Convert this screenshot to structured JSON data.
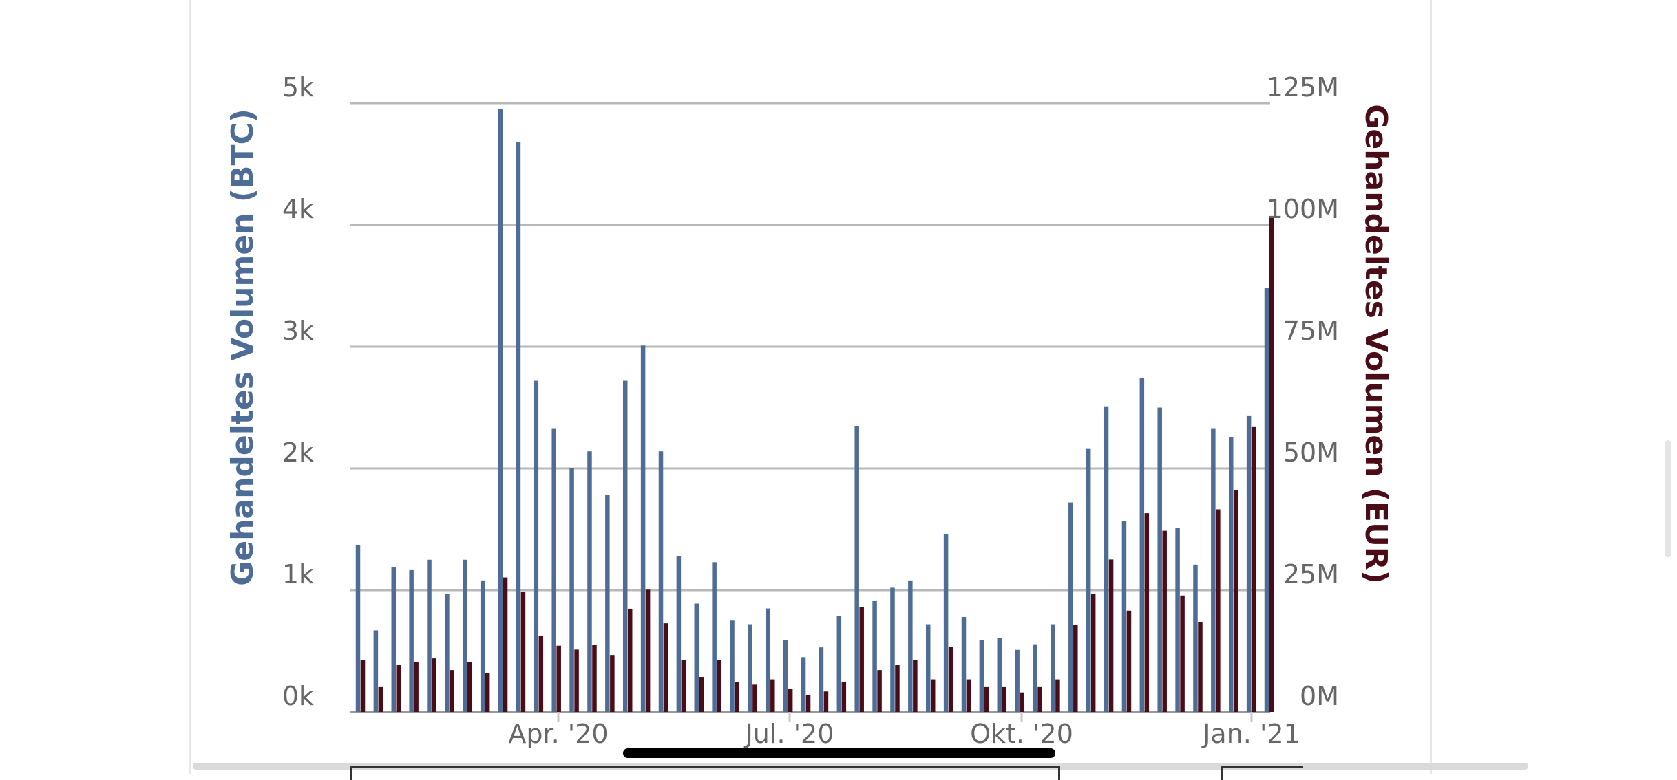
{
  "chart_data": {
    "type": "bar",
    "x_ticks": [
      "Apr. '20",
      "Jul. '20",
      "Okt. '20",
      "Jan. '21"
    ],
    "y_left": {
      "label": "Gehandeltes Volumen (BTC)",
      "ticks": [
        "0k",
        "1k",
        "2k",
        "3k",
        "4k",
        "5k"
      ],
      "range": [
        0,
        5000
      ],
      "color": "#4e6d96"
    },
    "y_right": {
      "label": "Gehandeltes Volumen (EUR)",
      "ticks": [
        "0M",
        "25M",
        "50M",
        "75M",
        "100M",
        "125M"
      ],
      "range": [
        0,
        125000000
      ],
      "color": "#4a0d18"
    },
    "grid": true,
    "series": [
      {
        "axis": "left",
        "values": [
          1370,
          670,
          1190,
          1170,
          1250,
          970,
          1250,
          1080,
          4950,
          4680,
          2720,
          2330,
          2000,
          2140,
          1780,
          2720,
          3010,
          2140,
          1280,
          890,
          1230,
          750,
          720,
          850,
          590,
          450,
          530,
          790,
          2350,
          910,
          1020,
          1080,
          720,
          1460,
          780,
          590,
          610,
          510,
          550,
          720,
          1720,
          2160,
          2510,
          1570,
          2740,
          2500,
          1510,
          1210,
          2330,
          2260,
          2430,
          3480
        ]
      },
      {
        "axis": "right",
        "values": [
          10600000,
          5100000,
          9600000,
          10200000,
          11000000,
          8600000,
          10200000,
          8000000,
          27600000,
          24600000,
          15600000,
          13600000,
          12800000,
          13700000,
          11700000,
          21200000,
          25100000,
          18200000,
          10600000,
          7200000,
          10700000,
          6100000,
          5600000,
          6700000,
          4700000,
          3500000,
          4200000,
          6200000,
          21600000,
          8600000,
          9600000,
          10700000,
          6700000,
          13300000,
          6700000,
          5100000,
          5100000,
          4000000,
          5100000,
          6700000,
          17800000,
          24300000,
          31300000,
          20800000,
          40800000,
          37200000,
          23900000,
          18400000,
          41600000,
          45600000,
          58500000,
          101800000
        ]
      }
    ]
  }
}
